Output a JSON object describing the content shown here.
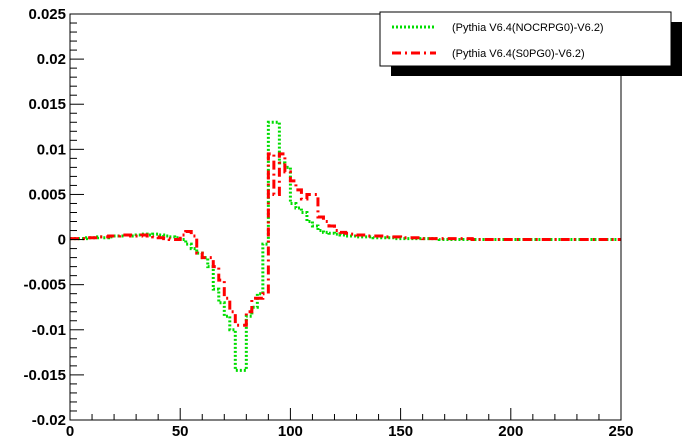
{
  "chart_data": {
    "type": "line",
    "title": "",
    "xlabel": "",
    "ylabel": "",
    "xlim": [
      0,
      250
    ],
    "ylim": [
      -0.02,
      0.025
    ],
    "x_ticks": [
      0,
      50,
      100,
      150,
      200,
      250
    ],
    "y_ticks": [
      -0.02,
      -0.015,
      -0.01,
      -0.005,
      0,
      0.005,
      0.01,
      0.015,
      0.02,
      0.025
    ],
    "x_tick_labels": [
      "0",
      "50",
      "100",
      "150",
      "200",
      "250"
    ],
    "y_tick_labels": [
      "-0.02",
      "-0.015",
      "-0.01",
      "-0.005",
      "0",
      "0.005",
      "0.01",
      "0.015",
      "0.02",
      "0.025"
    ],
    "grid": false,
    "legend_position": "top-right",
    "bin_width": 2.5,
    "x": [
      0,
      2.5,
      5,
      7.5,
      10,
      12.5,
      15,
      17.5,
      20,
      22.5,
      25,
      27.5,
      30,
      32.5,
      35,
      37.5,
      40,
      42.5,
      45,
      47.5,
      50,
      52.5,
      55,
      57.5,
      60,
      62.5,
      65,
      67.5,
      70,
      72.5,
      75,
      77.5,
      80,
      82.5,
      85,
      87.5,
      90,
      92.5,
      95,
      97.5,
      100,
      102.5,
      105,
      107.5,
      110,
      112.5,
      115,
      117.5,
      120,
      122.5,
      125,
      127.5,
      130,
      132.5,
      135,
      137.5,
      140,
      142.5,
      145,
      147.5,
      150,
      152.5,
      155,
      157.5,
      160,
      162.5,
      165,
      167.5,
      170,
      172.5,
      175,
      177.5,
      180,
      182.5,
      185,
      187.5,
      190,
      192.5,
      195,
      197.5,
      200,
      202.5,
      205,
      207.5,
      210,
      212.5,
      215,
      217.5,
      220,
      222.5,
      225,
      227.5,
      230,
      232.5,
      235,
      237.5,
      240,
      242.5,
      245,
      247.5
    ],
    "series": [
      {
        "name": "(Pythia V6.4(NOCRPG0)-V6.2)",
        "color": "#00dd00",
        "style": "dotted",
        "values": [
          0.0001,
          0.0001,
          0.0001,
          0.0002,
          0.0002,
          0.0003,
          0.0002,
          0.0003,
          0.0004,
          0.0004,
          0.0005,
          0.0004,
          0.0005,
          0.0006,
          0.0005,
          0.0006,
          0.0005,
          0.0004,
          0.0003,
          0.0002,
          0.0,
          -0.0005,
          -0.001,
          -0.0015,
          -0.002,
          -0.003,
          -0.0055,
          -0.007,
          -0.0085,
          -0.01,
          -0.0145,
          -0.0145,
          -0.0085,
          -0.0075,
          -0.006,
          -0.0005,
          0.013,
          0.013,
          0.0085,
          0.008,
          0.004,
          0.0035,
          0.003,
          0.002,
          0.0015,
          0.001,
          0.0008,
          0.0007,
          0.0006,
          0.0005,
          0.0004,
          0.0004,
          0.0003,
          0.0003,
          0.0003,
          0.0002,
          0.0002,
          0.0002,
          0.0002,
          0.0001,
          0.0001,
          0.0001,
          0.0001,
          0.0001,
          0.0001,
          0.0001,
          0.0001,
          0.0,
          0.0,
          0.0,
          0.0,
          0.0,
          0.0,
          0.0,
          0.0,
          0.0,
          0.0,
          0.0,
          0.0,
          0.0,
          0.0,
          0.0,
          0.0,
          0.0,
          0.0,
          0.0,
          0.0,
          0.0,
          0.0,
          0.0,
          0.0,
          0.0,
          0.0,
          0.0,
          0.0,
          0.0,
          0.0,
          0.0,
          0.0,
          0.0
        ]
      },
      {
        "name": "(Pythia V6.4(S0PG0)-V6.2)",
        "color": "#ff0000",
        "style": "dashdot",
        "values": [
          0.0001,
          0.0001,
          0.0001,
          0.0002,
          0.0002,
          0.0003,
          0.0003,
          0.0004,
          0.0004,
          0.0005,
          0.0005,
          0.0004,
          0.0004,
          0.0005,
          0.0004,
          0.0003,
          0.0002,
          0.0001,
          0.0,
          0.0,
          0.0005,
          0.0009,
          0.0004,
          -0.0015,
          -0.002,
          -0.002,
          -0.003,
          -0.0045,
          -0.0065,
          -0.008,
          -0.0095,
          -0.0095,
          -0.008,
          -0.0065,
          -0.0065,
          -0.006,
          0.0095,
          0.005,
          0.0095,
          0.0075,
          0.0065,
          0.0055,
          0.0045,
          0.005,
          0.005,
          0.0025,
          0.002,
          0.0015,
          0.001,
          0.0008,
          0.0007,
          0.0006,
          0.0005,
          0.0005,
          0.0004,
          0.0004,
          0.0004,
          0.0003,
          0.0003,
          0.0003,
          0.0002,
          0.0002,
          0.0002,
          0.0002,
          0.0001,
          0.0001,
          0.0001,
          0.0001,
          0.0001,
          0.0001,
          0.0001,
          0.0001,
          0.0001,
          0.0,
          0.0,
          0.0,
          0.0,
          0.0,
          0.0,
          0.0,
          0.0,
          0.0,
          0.0,
          0.0,
          0.0,
          0.0,
          0.0,
          0.0,
          0.0,
          0.0,
          0.0,
          0.0,
          0.0,
          0.0,
          0.0,
          0.0,
          0.0,
          0.0,
          0.0,
          0.0
        ]
      }
    ]
  }
}
